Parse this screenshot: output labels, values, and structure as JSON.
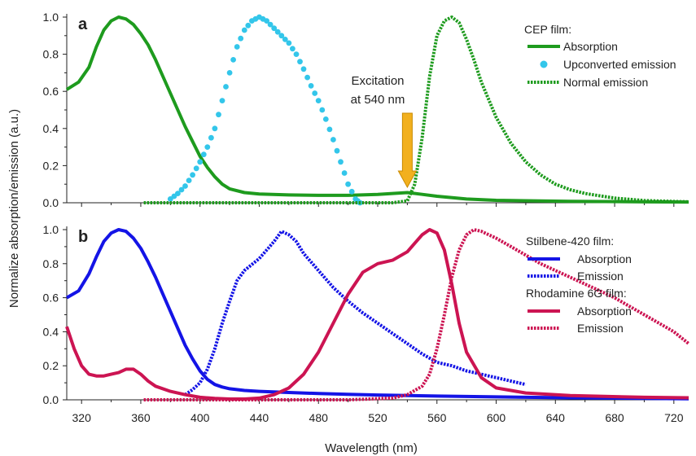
{
  "y_axis_label": "Normalize absorption/emission (a.u.)",
  "x_axis_label": "Wavelength (nm)",
  "colors": {
    "cep_green": "#1e9b1e",
    "cep_cyan": "#33c6ea",
    "stilbene_blue": "#1414e6",
    "rhodamine_red": "#cc1452",
    "arrow_orange": "#f2b01e",
    "arrow_stroke": "#c98a00"
  },
  "chart_data": [
    {
      "panel_letter": "a",
      "type": "line",
      "xlim": [
        310,
        730
      ],
      "ylim": [
        0,
        1.0
      ],
      "yticks": [
        "0.0",
        "0.2",
        "0.4",
        "0.6",
        "0.8",
        "1.0"
      ],
      "legend": {
        "placement": "top-right",
        "heading": "CEP film:"
      },
      "annotation": {
        "lines": [
          "Excitation",
          "at 540 nm"
        ],
        "x": 540
      },
      "series": [
        {
          "name": "Absorption",
          "style": "solid",
          "color": "#1e9b1e",
          "x": [
            310,
            318,
            325,
            330,
            335,
            340,
            345,
            350,
            355,
            360,
            365,
            370,
            375,
            380,
            385,
            390,
            395,
            400,
            405,
            410,
            415,
            420,
            430,
            440,
            460,
            480,
            500,
            520,
            530,
            540,
            550,
            560,
            580,
            600,
            650,
            700,
            730
          ],
          "y": [
            0.61,
            0.65,
            0.73,
            0.84,
            0.93,
            0.98,
            1.0,
            0.99,
            0.96,
            0.91,
            0.85,
            0.77,
            0.68,
            0.59,
            0.5,
            0.41,
            0.33,
            0.25,
            0.19,
            0.14,
            0.1,
            0.075,
            0.055,
            0.047,
            0.042,
            0.04,
            0.04,
            0.045,
            0.05,
            0.055,
            0.045,
            0.035,
            0.02,
            0.013,
            0.008,
            0.005,
            0.004
          ]
        },
        {
          "name": "Upconverted emission",
          "style": "dots",
          "color": "#33c6ea",
          "x": [
            380,
            385,
            390,
            395,
            400,
            405,
            410,
            415,
            420,
            425,
            430,
            435,
            440,
            445,
            450,
            455,
            460,
            465,
            470,
            475,
            480,
            485,
            490,
            495,
            500,
            505,
            508
          ],
          "y": [
            0.02,
            0.05,
            0.09,
            0.15,
            0.22,
            0.3,
            0.4,
            0.55,
            0.7,
            0.84,
            0.93,
            0.98,
            1.0,
            0.98,
            0.94,
            0.9,
            0.86,
            0.8,
            0.72,
            0.63,
            0.55,
            0.45,
            0.34,
            0.22,
            0.1,
            0.02,
            0.0
          ]
        },
        {
          "name": "Normal emission",
          "style": "dashed",
          "color": "#1e9b1e",
          "x": [
            362,
            400,
            450,
            500,
            530,
            540,
            545,
            550,
            555,
            560,
            565,
            570,
            575,
            580,
            585,
            590,
            600,
            610,
            620,
            630,
            640,
            650,
            660,
            680,
            700,
            730
          ],
          "y": [
            0.0,
            0.0,
            0.0,
            0.0,
            0.0,
            0.01,
            0.1,
            0.35,
            0.68,
            0.9,
            0.98,
            1.0,
            0.97,
            0.88,
            0.77,
            0.65,
            0.46,
            0.32,
            0.22,
            0.15,
            0.1,
            0.07,
            0.05,
            0.025,
            0.012,
            0.005
          ]
        }
      ]
    },
    {
      "panel_letter": "b",
      "type": "line",
      "xlim": [
        310,
        730
      ],
      "ylim": [
        0,
        1.0
      ],
      "xticks": [
        "320",
        "360",
        "400",
        "440",
        "480",
        "520",
        "560",
        "600",
        "640",
        "680",
        "720"
      ],
      "yticks": [
        "0.0",
        "0.2",
        "0.4",
        "0.6",
        "0.8",
        "1.0"
      ],
      "legend": {
        "placement": "right",
        "groups": [
          "Stilbene-420 film:",
          "Rhodamine 6G film:"
        ]
      },
      "series": [
        {
          "group": "Stilbene-420 film:",
          "name": "Absorption",
          "style": "solid",
          "color": "#1414e6",
          "x": [
            310,
            318,
            325,
            330,
            335,
            340,
            345,
            350,
            355,
            360,
            365,
            370,
            375,
            380,
            385,
            390,
            395,
            400,
            405,
            410,
            415,
            420,
            430,
            440,
            460,
            480,
            500,
            520,
            560,
            600,
            650,
            700,
            730
          ],
          "y": [
            0.6,
            0.64,
            0.74,
            0.84,
            0.93,
            0.98,
            1.0,
            0.99,
            0.95,
            0.89,
            0.81,
            0.72,
            0.62,
            0.52,
            0.42,
            0.32,
            0.24,
            0.17,
            0.12,
            0.09,
            0.075,
            0.065,
            0.055,
            0.05,
            0.043,
            0.037,
            0.032,
            0.028,
            0.022,
            0.017,
            0.012,
            0.008,
            0.006
          ]
        },
        {
          "group": "Stilbene-420 film:",
          "name": "Emission",
          "style": "dashed",
          "color": "#1414e6",
          "x": [
            390,
            395,
            400,
            405,
            410,
            415,
            420,
            425,
            430,
            440,
            450,
            455,
            460,
            465,
            470,
            480,
            490,
            500,
            510,
            520,
            530,
            540,
            550,
            560,
            570,
            580,
            590,
            600,
            610,
            620
          ],
          "y": [
            0.03,
            0.06,
            0.1,
            0.18,
            0.3,
            0.45,
            0.58,
            0.7,
            0.76,
            0.83,
            0.93,
            0.99,
            0.97,
            0.93,
            0.86,
            0.76,
            0.66,
            0.58,
            0.51,
            0.45,
            0.39,
            0.33,
            0.27,
            0.22,
            0.2,
            0.17,
            0.15,
            0.13,
            0.11,
            0.09
          ]
        },
        {
          "group": "Rhodamine 6G film:",
          "name": "Absorption",
          "style": "solid",
          "color": "#cc1452",
          "x": [
            310,
            315,
            320,
            325,
            330,
            335,
            340,
            345,
            350,
            355,
            360,
            365,
            370,
            380,
            390,
            400,
            410,
            420,
            430,
            440,
            450,
            460,
            470,
            480,
            490,
            500,
            510,
            520,
            530,
            540,
            545,
            550,
            555,
            560,
            565,
            570,
            575,
            580,
            590,
            600,
            620,
            650,
            700,
            730
          ],
          "y": [
            0.43,
            0.3,
            0.2,
            0.15,
            0.14,
            0.14,
            0.15,
            0.16,
            0.18,
            0.18,
            0.15,
            0.11,
            0.08,
            0.05,
            0.03,
            0.015,
            0.008,
            0.005,
            0.005,
            0.01,
            0.03,
            0.07,
            0.15,
            0.28,
            0.45,
            0.62,
            0.75,
            0.8,
            0.82,
            0.87,
            0.92,
            0.97,
            1.0,
            0.98,
            0.88,
            0.68,
            0.45,
            0.28,
            0.13,
            0.07,
            0.04,
            0.025,
            0.015,
            0.012
          ]
        },
        {
          "group": "Rhodamine 6G film:",
          "name": "Emission",
          "style": "dashed",
          "color": "#cc1452",
          "x": [
            362,
            400,
            450,
            500,
            530,
            540,
            550,
            555,
            560,
            565,
            570,
            575,
            580,
            585,
            590,
            595,
            600,
            610,
            620,
            630,
            640,
            650,
            660,
            670,
            680,
            690,
            700,
            710,
            720,
            730
          ],
          "y": [
            0.0,
            0.0,
            0.0,
            0.0,
            0.01,
            0.03,
            0.08,
            0.15,
            0.3,
            0.5,
            0.72,
            0.88,
            0.97,
            1.0,
            0.99,
            0.97,
            0.95,
            0.9,
            0.85,
            0.8,
            0.76,
            0.72,
            0.68,
            0.64,
            0.6,
            0.55,
            0.5,
            0.45,
            0.4,
            0.33
          ]
        }
      ]
    }
  ]
}
